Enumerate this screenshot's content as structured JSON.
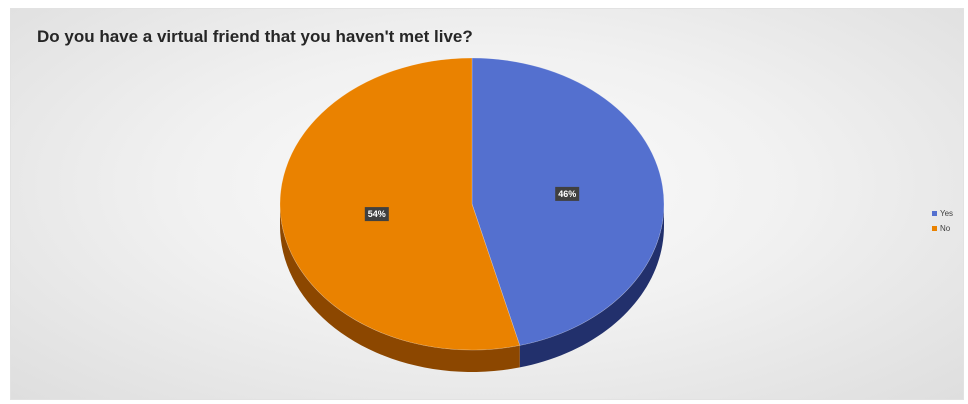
{
  "chart_data": {
    "type": "pie",
    "title": "Do you have a virtual friend that you haven't met live?",
    "categories": [
      "Yes",
      "No"
    ],
    "values": [
      46,
      54
    ],
    "data_labels": [
      "46%",
      "54%"
    ],
    "colors": [
      "#5470cf",
      "#ea8200"
    ],
    "side_colors": [
      "#22306c",
      "#8c4700"
    ],
    "legend_placement": "right",
    "style": "3d"
  }
}
